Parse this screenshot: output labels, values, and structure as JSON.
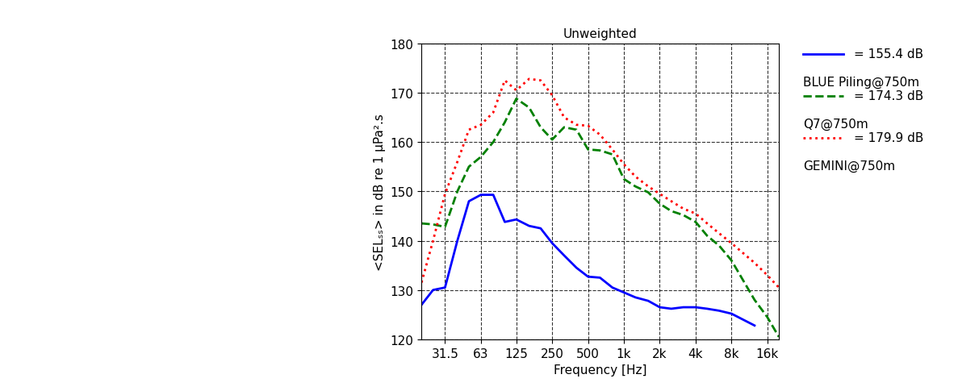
{
  "chart_data": {
    "type": "line",
    "title": "Unweighted",
    "x_label": "Frequency [Hz]",
    "y_label": "<SELₛₛ> in dB re 1 µPa².s",
    "log": "x",
    "grid": true,
    "x": [
      20,
      25,
      31.5,
      40,
      50,
      63,
      80,
      100,
      125,
      160,
      200,
      250,
      315,
      400,
      500,
      630,
      800,
      1000,
      1250,
      1600,
      2000,
      2500,
      3150,
      4000,
      5000,
      6300,
      8000,
      10000,
      12500,
      16000,
      20000
    ],
    "xlim": [
      20,
      20000
    ],
    "xticks": [
      31.5,
      63,
      125,
      250,
      500,
      {
        "value": 1000,
        "label": "1k"
      },
      {
        "value": 2000,
        "label": "2k"
      },
      {
        "value": 4000,
        "label": "4k"
      },
      {
        "value": 8000,
        "label": "8k"
      },
      {
        "value": 16000,
        "label": "16k"
      }
    ],
    "ylim": [
      120,
      180
    ],
    "yticks": [
      120,
      130,
      140,
      150,
      160,
      170,
      180
    ],
    "series": [
      {
        "name": "BLUE Piling@750m",
        "legend_value": "= 155.4 dB",
        "color": "#0000ff",
        "line_style": "solid",
        "values": [
          127,
          130,
          130.5,
          140,
          148,
          149.3,
          149.3,
          143.8,
          144.3,
          143,
          142.5,
          139.5,
          137,
          134.5,
          132.7,
          132.5,
          130.5,
          129.5,
          128.5,
          127.8,
          126.5,
          126.2,
          126.5,
          126.5,
          126.2,
          125.8,
          125.2,
          124,
          122.8,
          null,
          null
        ]
      },
      {
        "name": "Q7@750m",
        "legend_value": "= 174.3 dB",
        "color": "#008000",
        "line_style": "dashed",
        "values": [
          143.5,
          143.3,
          142.8,
          150,
          155,
          157,
          160,
          164,
          168.8,
          167,
          163,
          160.5,
          163,
          162.5,
          158.5,
          158.3,
          157.5,
          152.5,
          151,
          149.8,
          147.5,
          146,
          145.2,
          143.8,
          141,
          139,
          136,
          132,
          128,
          124.5,
          120.5
        ]
      },
      {
        "name": "GEMINI@750m",
        "legend_value": "= 179.9 dB",
        "color": "#ff0000",
        "line_style": "dotted",
        "values": [
          131.5,
          140,
          149.5,
          156,
          162.5,
          163.5,
          166,
          172.5,
          170.5,
          172.8,
          172.5,
          169.5,
          165,
          163.5,
          163.3,
          161.5,
          158.5,
          155.5,
          153,
          151,
          149.5,
          148,
          146.5,
          145.5,
          143.5,
          141.5,
          139.5,
          137.5,
          135.5,
          133,
          130.5
        ]
      }
    ]
  }
}
